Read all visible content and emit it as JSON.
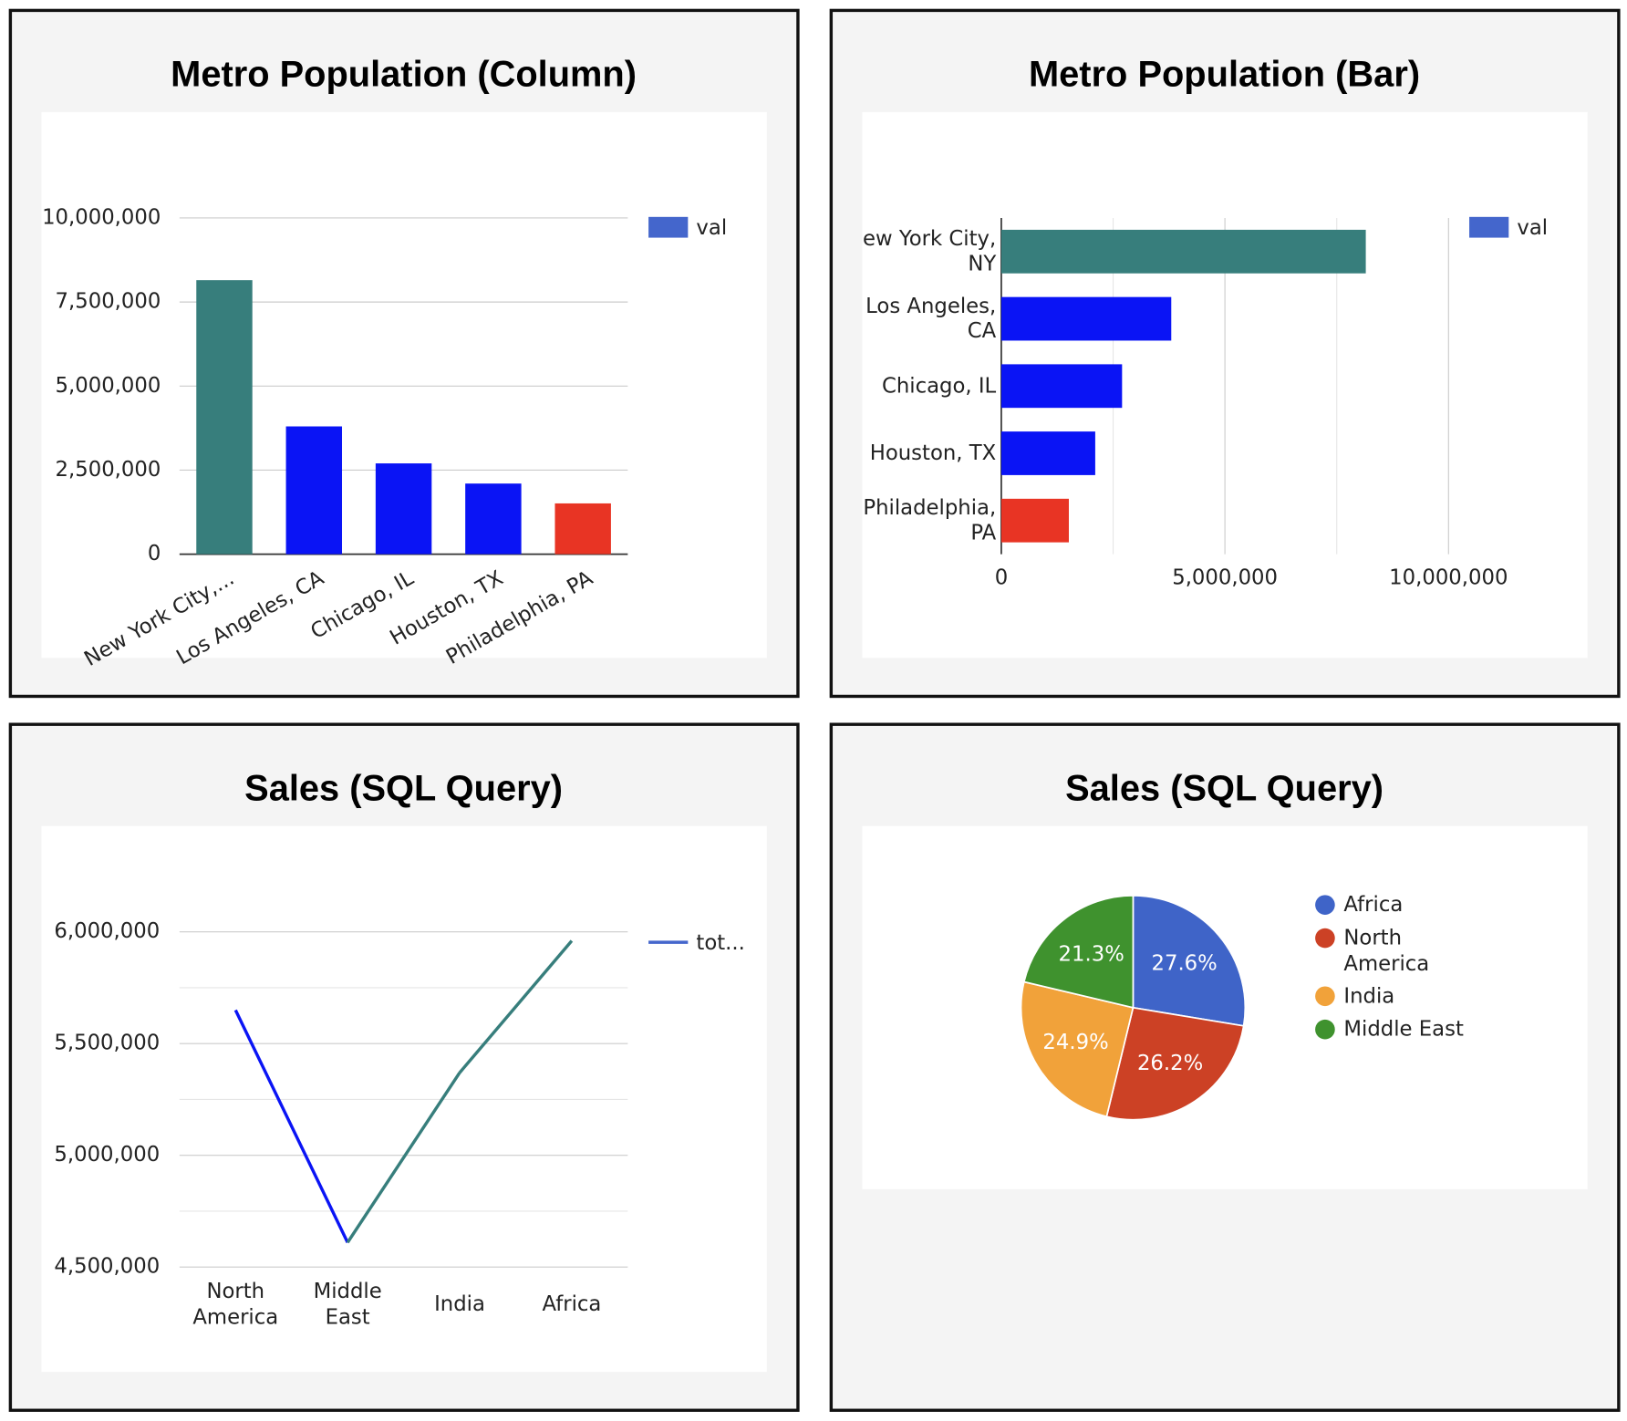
{
  "chart_data": [
    {
      "type": "column",
      "title": "Metro Population (Column)",
      "categories": [
        "New York City,...",
        "Los Angeles, CA",
        "Chicago, IL",
        "Houston, TX",
        "Philadelphia, PA"
      ],
      "series": [
        {
          "name": "val",
          "color": "#4466cc",
          "values": [
            8150000,
            3800000,
            2700000,
            2100000,
            1510000
          ],
          "colors": [
            "#377e7c",
            "#0a14f5",
            "#0a14f5",
            "#0a14f5",
            "#e83424"
          ]
        }
      ],
      "ylim": [
        0,
        10000000
      ],
      "yticks": [
        {
          "value": 0,
          "label": "0"
        },
        {
          "value": 2500000,
          "label": "2,500,000"
        },
        {
          "value": 5000000,
          "label": "5,000,000"
        },
        {
          "value": 7500000,
          "label": "7,500,000"
        },
        {
          "value": 10000000,
          "label": "10,000,000"
        }
      ],
      "grid": true,
      "legend": "right"
    },
    {
      "type": "hbar",
      "title": "Metro Population (Bar)",
      "categories": [
        "New York City, NY",
        "Los Angeles, CA",
        "Chicago, IL",
        "Houston, TX",
        "Philadelphia, PA"
      ],
      "series": [
        {
          "name": "val",
          "color": "#4466cc",
          "values": [
            8150000,
            3800000,
            2700000,
            2100000,
            1510000
          ],
          "colors": [
            "#377e7c",
            "#0a14f5",
            "#0a14f5",
            "#0a14f5",
            "#e83424"
          ]
        }
      ],
      "xlim": [
        0,
        10000000
      ],
      "xticks": [
        {
          "value": 0,
          "label": "0"
        },
        {
          "value": 5000000,
          "label": "5,000,000"
        },
        {
          "value": 10000000,
          "label": "10,000,000"
        }
      ],
      "xminor": [
        2500000,
        7500000
      ],
      "grid": true,
      "legend": "right"
    },
    {
      "type": "line",
      "title": "Sales (SQL Query)",
      "categories": [
        "North America",
        "Middle East",
        "India",
        "Africa"
      ],
      "series": [
        {
          "name": "tot...",
          "color": "#4466cc",
          "values": [
            5650000,
            4610000,
            5370000,
            5960000
          ],
          "segment_colors": [
            "#0a14f5",
            "#377e7c",
            "#377e7c"
          ]
        }
      ],
      "ylim": [
        4500000,
        6000000
      ],
      "yticks": [
        {
          "value": 4500000,
          "label": "4,500,000"
        },
        {
          "value": 5000000,
          "label": "5,000,000"
        },
        {
          "value": 5500000,
          "label": "5,500,000"
        },
        {
          "value": 6000000,
          "label": "6,000,000"
        }
      ],
      "yminor": [
        4750000,
        5250000,
        5750000
      ],
      "grid": true,
      "legend": "right"
    },
    {
      "type": "pie",
      "title": "Sales (SQL Query)",
      "categories": [
        "Africa",
        "North America",
        "India",
        "Middle East"
      ],
      "values": [
        27.6,
        26.2,
        24.9,
        21.3
      ],
      "value_labels": [
        "27.6%",
        "26.2%",
        "24.9%",
        "21.3%"
      ],
      "colors": [
        "#3f64c8",
        "#cc4125",
        "#f1a23a",
        "#3f922e"
      ],
      "legend": "right"
    }
  ]
}
